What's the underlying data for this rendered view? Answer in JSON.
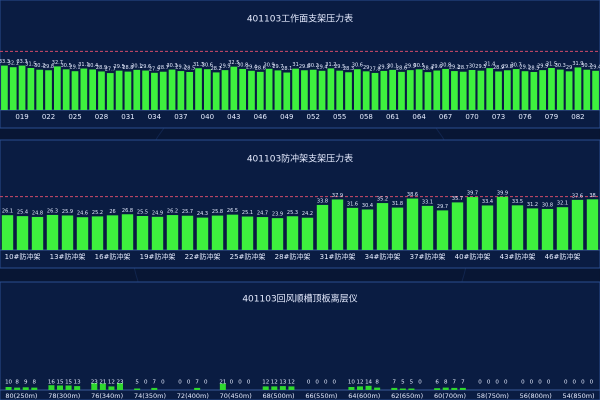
{
  "chart_data": [
    {
      "type": "bar",
      "title": "401103工作面支架压力表",
      "color": "#3ef03e",
      "ylim": [
        0,
        45
      ],
      "threshold": 44,
      "categories": [
        null,
        null,
        "019",
        null,
        null,
        "022",
        null,
        null,
        "025",
        null,
        null,
        "028",
        null,
        null,
        "031",
        null,
        null,
        "034",
        null,
        null,
        "037",
        null,
        null,
        "040",
        null,
        null,
        "043",
        null,
        null,
        "046",
        null,
        null,
        "049",
        null,
        null,
        "052",
        null,
        null,
        "055",
        null,
        null,
        "058",
        null,
        null,
        "061",
        null,
        null,
        "064",
        null,
        null,
        "067",
        null,
        null,
        "070",
        null,
        null,
        "073",
        null,
        null,
        "076",
        null,
        null,
        "079",
        null,
        null,
        "082",
        null,
        null
      ],
      "values": [
        33.3,
        32.1,
        33.3,
        31.5,
        30.2,
        29.8,
        32.7,
        30.5,
        29.1,
        31.1,
        30.4,
        28.9,
        27.7,
        29.5,
        28.8,
        30.1,
        29.6,
        27.9,
        28.7,
        30.3,
        29.2,
        28.5,
        31.3,
        30.6,
        28.2,
        29.9,
        32.5,
        30.8,
        29.4,
        28.6,
        30.9,
        29.7,
        28.1,
        31.0,
        29.8,
        30.2,
        29.4,
        31.2,
        29.5,
        28.3,
        30.6,
        29.0,
        27.8,
        29.3,
        30.1,
        28.6,
        29.9,
        30.5,
        28.4,
        29.6,
        30.8,
        29.2,
        28.7,
        30.0,
        29.5,
        31.4,
        28.9,
        29.8,
        30.7,
        29.1,
        28.5,
        29.9,
        31.5,
        30.3,
        29.0,
        31.9,
        30.2,
        29.4
      ]
    },
    {
      "type": "bar",
      "title": "401103防冲架支架压力表",
      "color": "#3ef03e",
      "ylim": [
        0,
        45
      ],
      "threshold": 40,
      "categories": [
        null,
        "10#防冲架",
        null,
        null,
        "13#防冲架",
        null,
        null,
        "16#防冲架",
        null,
        null,
        "19#防冲架",
        null,
        null,
        "22#防冲架",
        null,
        null,
        "25#防冲架",
        null,
        null,
        "28#防冲架",
        null,
        null,
        "31#防冲架",
        null,
        null,
        "34#防冲架",
        null,
        null,
        "37#防冲架",
        null,
        null,
        "40#防冲架",
        null,
        null,
        "43#防冲架",
        null,
        null,
        "46#防冲架",
        null,
        null
      ],
      "values": [
        26.1,
        25.4,
        24.8,
        26.3,
        25.9,
        24.6,
        25.2,
        26.0,
        26.8,
        25.5,
        24.9,
        26.2,
        25.7,
        24.3,
        25.8,
        26.5,
        25.1,
        24.7,
        23.9,
        25.3,
        24.2,
        33.8,
        37.9,
        31.6,
        30.4,
        35.2,
        31.8,
        38.6,
        33.1,
        29.7,
        35.7,
        39.7,
        33.4,
        39.9,
        33.5,
        31.2,
        30.8,
        32.1,
        37.6,
        38.0
      ]
    },
    {
      "type": "grouped",
      "title": "401103回风顺槽顶板离层仪",
      "ylim": [
        0,
        300
      ],
      "categories": [
        "80(250m)",
        "78(300m)",
        "76(340m)",
        "74(350m)",
        "72(400m)",
        "70(450m)",
        "68(500m)",
        "66(550m)",
        "64(600m)",
        "62(650m)",
        "60(700m)",
        "58(750m)",
        "56(800m)",
        "54(850m)"
      ],
      "series": [
        {
          "color": "#2fd82f",
          "values": [
            10,
            16,
            23,
            5,
            0,
            21,
            12,
            0,
            10,
            7,
            6,
            0,
            0,
            0
          ]
        },
        {
          "color": "#2fd82f",
          "values": [
            8,
            15,
            21,
            0,
            0,
            0,
            12,
            0,
            12,
            5,
            8,
            0,
            0,
            0
          ]
        },
        {
          "color": "#2fd82f",
          "values": [
            9,
            15,
            12,
            7,
            7,
            0,
            13,
            0,
            14,
            5,
            7,
            0,
            0,
            0
          ]
        },
        {
          "color": "#2fd82f",
          "values": [
            8,
            13,
            23,
            0,
            0,
            0,
            12,
            0,
            8,
            0,
            7,
            0,
            0,
            0
          ]
        }
      ]
    }
  ]
}
